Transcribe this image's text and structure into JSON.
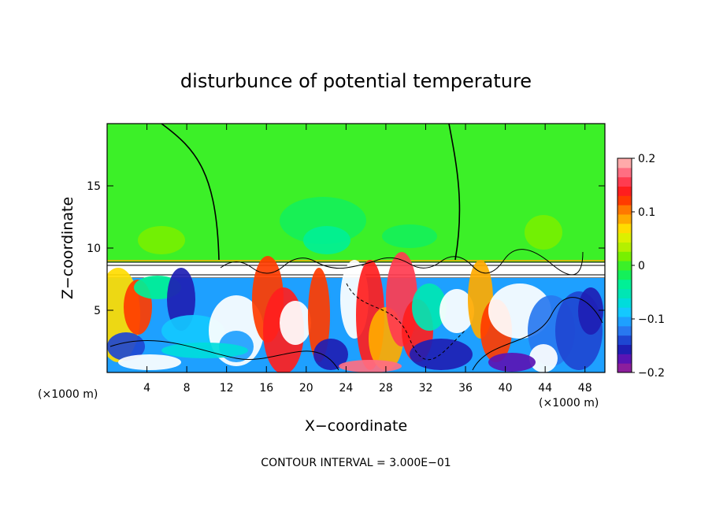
{
  "chart_data": {
    "type": "heatmap",
    "title": "disturbunce of potential temperature",
    "xlabel": "X−coordinate",
    "ylabel": "Z−coordinate",
    "x_unit_left": "(×1000 m)",
    "x_unit_right": "(×1000 m)",
    "x_ticks": [
      {
        "value": 4,
        "label": "4"
      },
      {
        "value": 8,
        "label": "8"
      },
      {
        "value": 12,
        "label": "12"
      },
      {
        "value": 16,
        "label": "16"
      },
      {
        "value": 20,
        "label": "20"
      },
      {
        "value": 24,
        "label": "24"
      },
      {
        "value": 28,
        "label": "28"
      },
      {
        "value": 32,
        "label": "32"
      },
      {
        "value": 36,
        "label": "36"
      },
      {
        "value": 40,
        "label": "40"
      },
      {
        "value": 44,
        "label": "44"
      },
      {
        "value": 48,
        "label": "48"
      }
    ],
    "y_ticks": [
      {
        "value": 5,
        "label": "5"
      },
      {
        "value": 10,
        "label": "10"
      },
      {
        "value": 15,
        "label": "15"
      }
    ],
    "xlim": [
      0,
      50
    ],
    "ylim": [
      0,
      20
    ],
    "colorbar": {
      "range": [
        -0.2,
        0.2
      ],
      "ticks": [
        {
          "value": 0.2,
          "label": "0.2"
        },
        {
          "value": 0.1,
          "label": "0.1"
        },
        {
          "value": 0,
          "label": "0"
        },
        {
          "value": -0.1,
          "label": "−0.1"
        },
        {
          "value": -0.2,
          "label": "−0.2"
        }
      ],
      "colors": [
        "#8c1e9c",
        "#5a14b4",
        "#1e1eb4",
        "#1e46d2",
        "#2878f0",
        "#1ea0ff",
        "#14c8ff",
        "#00dcdc",
        "#00e6b4",
        "#00f096",
        "#14f05a",
        "#3cf028",
        "#78f000",
        "#b4f000",
        "#dcf000",
        "#ffdc00",
        "#ffaa00",
        "#ff7800",
        "#ff3c00",
        "#ff1e1e",
        "#ff3c50",
        "#ff6e82",
        "#ffaaaa"
      ]
    },
    "annotation": "CONTOUR INTERVAL = 3.000E−01"
  }
}
